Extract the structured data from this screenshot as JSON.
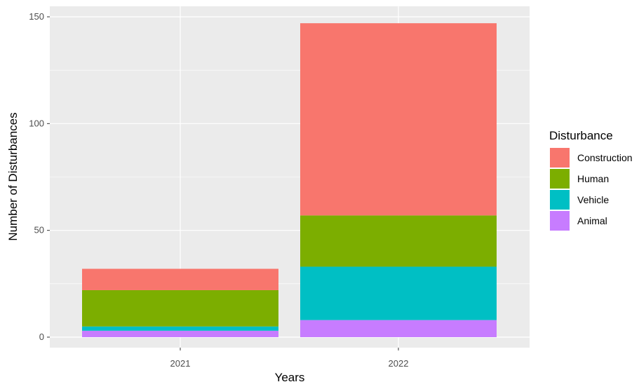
{
  "chart_data": {
    "type": "bar",
    "stacked": true,
    "categories": [
      "2021",
      "2022"
    ],
    "series": [
      {
        "name": "Animal",
        "values": [
          3,
          8
        ],
        "color": "#C77CFF"
      },
      {
        "name": "Vehicle",
        "values": [
          2,
          25
        ],
        "color": "#00BFC4"
      },
      {
        "name": "Human",
        "values": [
          17,
          24
        ],
        "color": "#7CAE00"
      },
      {
        "name": "Construction",
        "values": [
          10,
          90
        ],
        "color": "#F8766D"
      }
    ],
    "xlabel": "Years",
    "ylabel": "Number of Disturbances",
    "ylim": [
      0,
      150
    ],
    "yticks": [
      "0",
      "50",
      "100",
      "150"
    ],
    "grid": true,
    "legend": {
      "title": "Disturbance",
      "position": "right",
      "entries": [
        "Construction",
        "Human",
        "Vehicle",
        "Animal"
      ]
    }
  }
}
